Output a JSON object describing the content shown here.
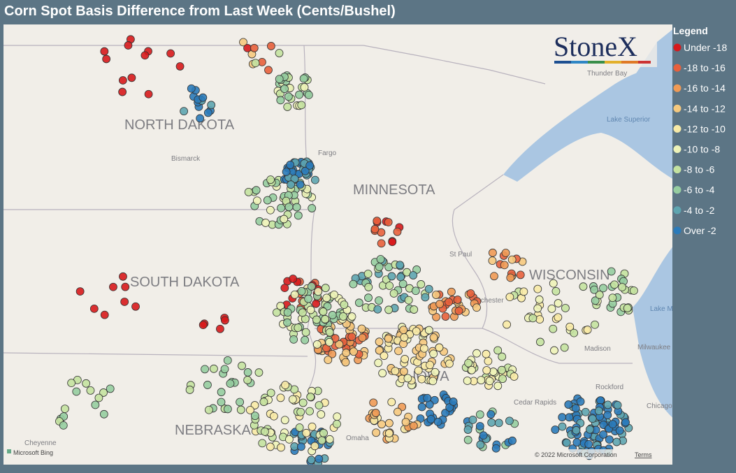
{
  "header": {
    "title": "Corn Spot Basis Difference from Last Week (Cents/Bushel)"
  },
  "legend": {
    "title": "Legend",
    "items": [
      {
        "label": "Under -18",
        "color": "#d7191c"
      },
      {
        "label": "-18 to -16",
        "color": "#e8603c"
      },
      {
        "label": "-16 to -14",
        "color": "#f09a55"
      },
      {
        "label": "-14 to -12",
        "color": "#f6c97e"
      },
      {
        "label": "-12 to -10",
        "color": "#f8eaa6"
      },
      {
        "label": "-10 to -8",
        "color": "#eef3b8"
      },
      {
        "label": "-8 to -6",
        "color": "#c4e2a0"
      },
      {
        "label": "-6 to -4",
        "color": "#96cda0"
      },
      {
        "label": "-4 to -2",
        "color": "#5ea5b0"
      },
      {
        "label": "Over -2",
        "color": "#2b7bba"
      }
    ]
  },
  "logo": "StoneX",
  "map": {
    "states": [
      "NORTH DAKOTA",
      "MINNESOTA",
      "SOUTH DAKOTA",
      "WISCONSIN",
      "NEBRASKA",
      "IOWA"
    ],
    "cities": [
      "Bismarck",
      "Fargo",
      "St Paul",
      "Rochester",
      "Madison",
      "Milwaukee",
      "Rockford",
      "Chicago",
      "Cedar Rapids",
      "Omaha",
      "Cheyenne",
      "Thunder Bay"
    ],
    "water": [
      "Lake Superior",
      "Lake Michigan"
    ]
  },
  "footer": {
    "provider": "Microsoft Bing",
    "copyright": "© 2022 Microsoft Corporation",
    "terms": "Terms"
  }
}
